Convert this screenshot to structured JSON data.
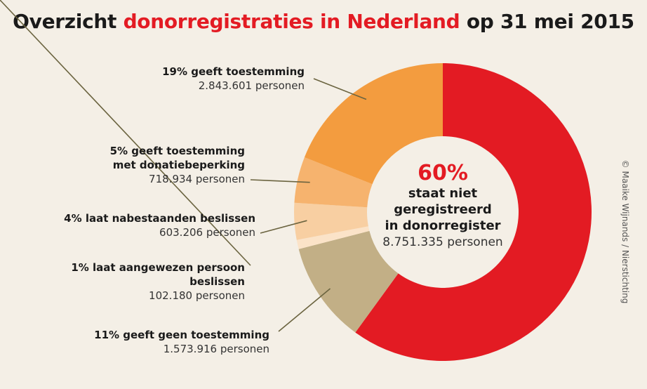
{
  "header": {
    "title_part1": "Overzicht ",
    "title_highlight": "donorregistraties in Nederland",
    "title_part2": " op 31 mei 2015"
  },
  "credit": "© Maaike Wijnands / Nierstichting",
  "colors": {
    "red": "#e31b23",
    "orange": "#f39c3f",
    "light_orange": "#f6b36e",
    "peach": "#f8cfa2",
    "cream": "#fbe3c8",
    "tan": "#c2af86",
    "leader": "#6b6440"
  },
  "chart_data": {
    "type": "pie",
    "style": "donut",
    "center": {
      "percent": "60%",
      "line1": "staat niet",
      "line2": "geregistreerd",
      "line3": "in donorregister",
      "count": "8.751.335 personen"
    },
    "slices": [
      {
        "key": "niet_geregistreerd",
        "value": 60,
        "persons": 8751335,
        "color": "#e31b23"
      },
      {
        "key": "geen_toestemming",
        "value": 11,
        "persons": 1573916,
        "label": "11% geeft geen toestemming",
        "count": "1.573.916 personen",
        "color": "#c2af86"
      },
      {
        "key": "aangewezen_persoon",
        "value": 1,
        "persons": 102180,
        "label_line1": "1% laat aangewezen persoon",
        "label_line2": "beslissen",
        "count": "102.180 personen",
        "color": "#fbe3c8"
      },
      {
        "key": "nabestaanden",
        "value": 4,
        "persons": 603206,
        "label": "4% laat nabestaanden beslissen",
        "count": "603.206 personen",
        "color": "#f8cfa2"
      },
      {
        "key": "beperking",
        "value": 5,
        "persons": 718934,
        "label_line1": "5% geeft toestemming",
        "label_line2": "met donatiebeperking",
        "count": "718.934 personen",
        "color": "#f6b36e"
      },
      {
        "key": "toestemming",
        "value": 19,
        "persons": 2843601,
        "label": "19% geeft toestemming",
        "count": "2.843.601 personen",
        "color": "#f39c3f"
      }
    ]
  }
}
